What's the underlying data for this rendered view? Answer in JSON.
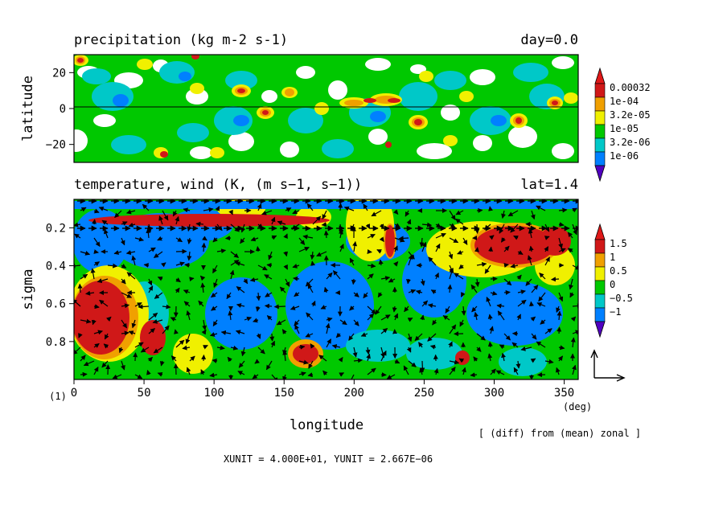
{
  "chart_data": [
    {
      "type": "heatmap",
      "title": "precipitation (kg m-2 s-1)",
      "right_label": "day=0.0",
      "ylabel": "latitude",
      "xlim": [
        0,
        360
      ],
      "ylim": [
        -30,
        30
      ],
      "y_ticks": [
        20,
        0,
        -20
      ],
      "y_tick_labels": [
        "20",
        "0",
        "−20"
      ],
      "legend": {
        "placement": "right",
        "levels": [
          "0.00032",
          "1e-04",
          "3.2e-05",
          "1e-05",
          "3.2e-06",
          "1e-06"
        ],
        "colors": [
          "#d01818",
          "#f0a000",
          "#f0f000",
          "#00c800",
          "#00c8c8",
          "#0080ff"
        ],
        "top_arrow_color": "#e01818",
        "bottom_arrow_color": "#5000c0"
      },
      "grid": false
    },
    {
      "type": "heatmap",
      "title": "temperature, wind (K, (m s−1, s−1))",
      "right_label": "lat=1.4",
      "xlabel": "longitude",
      "ylabel": "sigma",
      "x_unit_label": "(deg)",
      "xlim": [
        0,
        360
      ],
      "ylim": [
        1.0,
        0.05
      ],
      "x_ticks": [
        0,
        50,
        100,
        150,
        200,
        250,
        300,
        350
      ],
      "x_tick_labels": [
        "0",
        "50",
        "100",
        "150",
        "200",
        "250",
        "300",
        "350"
      ],
      "y_ticks": [
        0.2,
        0.4,
        0.6,
        0.8
      ],
      "y_tick_labels": [
        "0.2",
        "0.4",
        "0.6",
        "0.8"
      ],
      "legend": {
        "placement": "right",
        "levels": [
          "1.5",
          "1",
          "0.5",
          "0",
          "−0.5",
          "−1"
        ],
        "colors": [
          "#d01818",
          "#f0a000",
          "#f0f000",
          "#00c800",
          "#00c8c8",
          "#0080ff"
        ],
        "top_arrow_color": "#e01818",
        "bottom_arrow_color": "#5000c0"
      },
      "overlay": "wind vectors",
      "grid": false
    }
  ],
  "annotations": {
    "frame_number": "(1)",
    "diff_note": "[ (diff) from (mean) zonal ]",
    "unit_text": "XUNIT = 4.000E+01, YUNIT = 2.667E−06"
  },
  "colors": {
    "red": "#d01818",
    "orange": "#f0a000",
    "yellow": "#f0f000",
    "green": "#00c800",
    "cyan": "#00c8c8",
    "blue": "#0080ff",
    "white": "#ffffff"
  }
}
